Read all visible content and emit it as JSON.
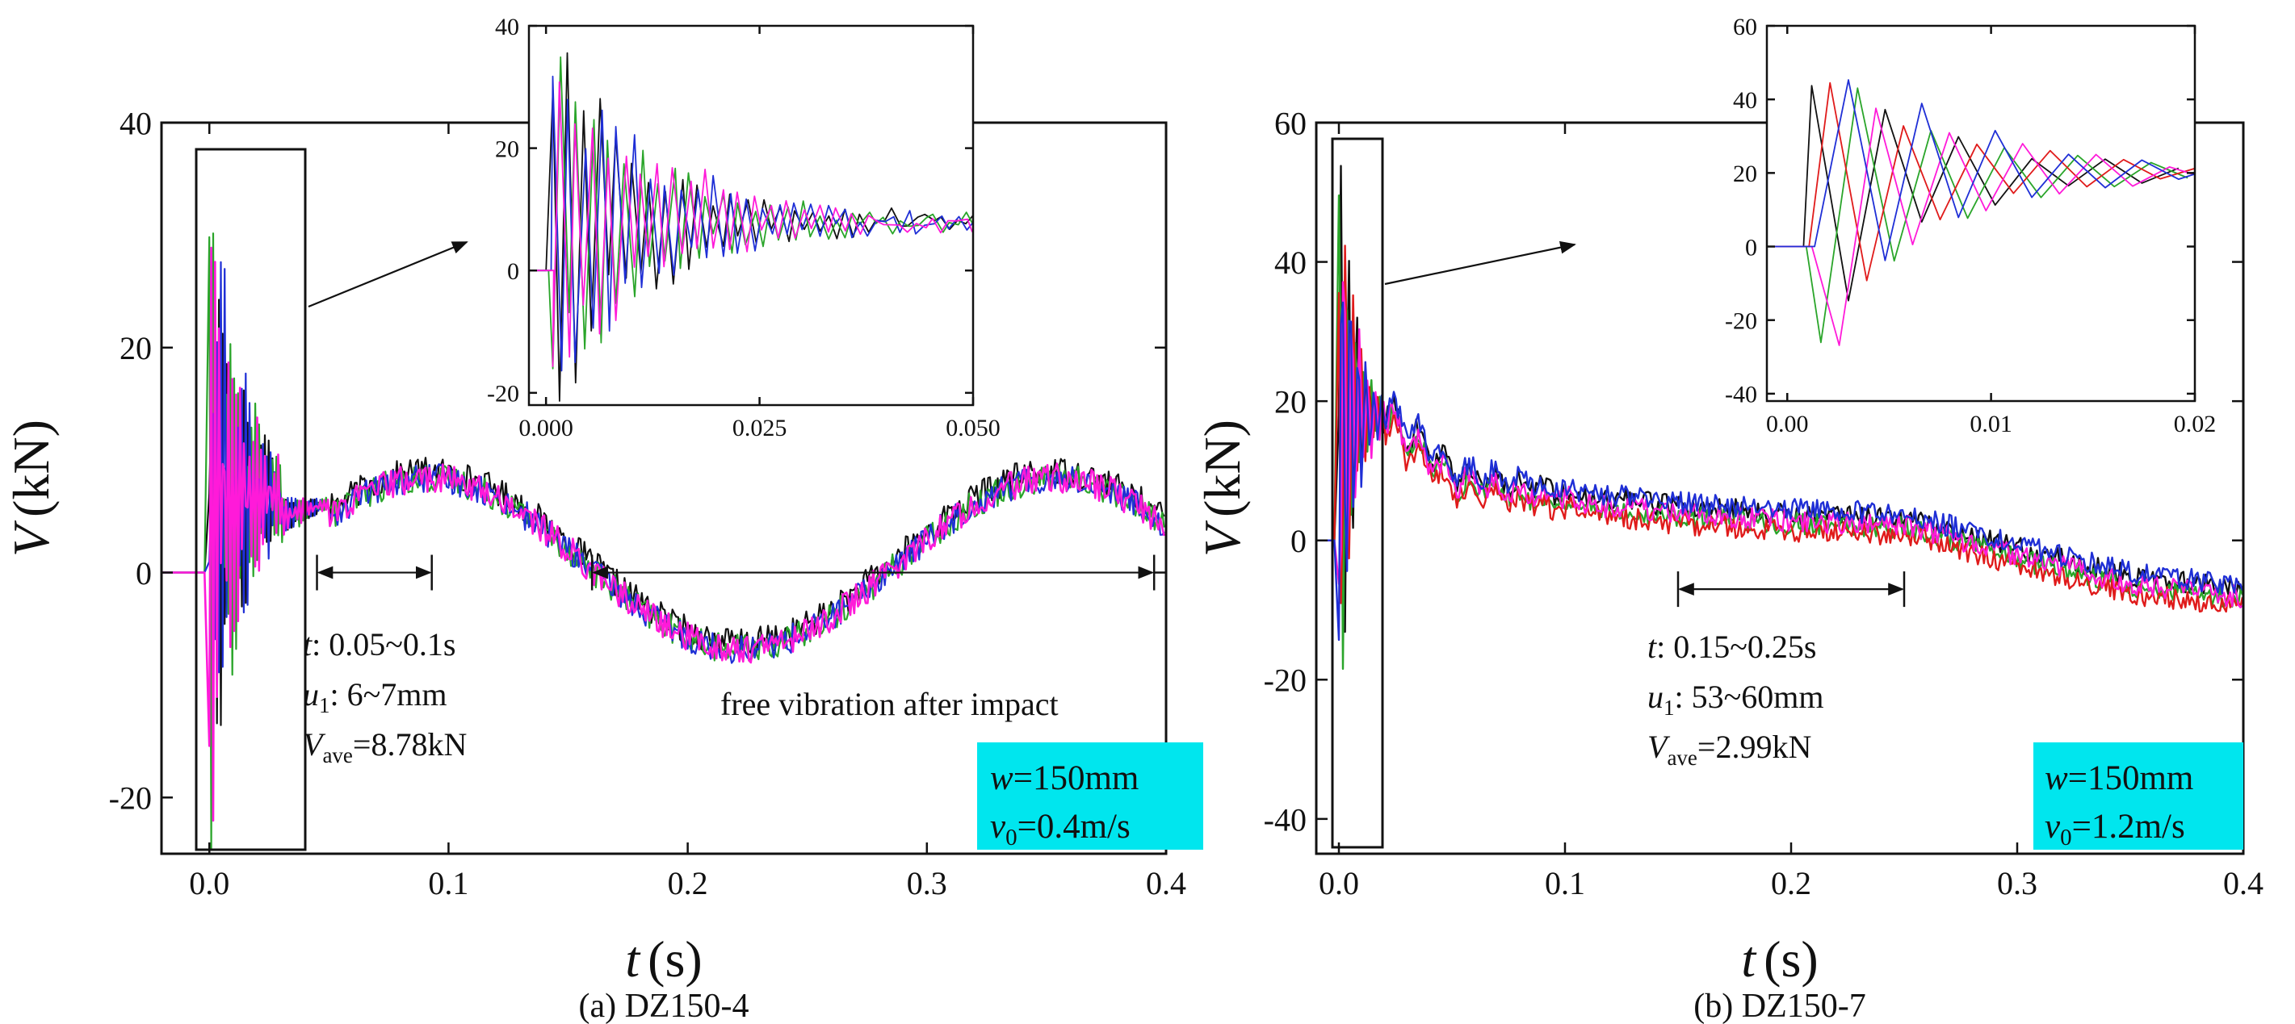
{
  "colors": {
    "black": "#111111",
    "red": "#e01b1b",
    "green": "#2aa52a",
    "blue": "#1f2fd6",
    "magenta": "#ff1ad9",
    "info_box": "#00e6ee"
  },
  "chart_data": [
    {
      "type": "line",
      "caption": "(a) DZ150-4",
      "xlabel_var": "t",
      "xlabel_unit": "(s)",
      "ylabel_var": "V",
      "ylabel_unit": "(kN)",
      "xlim": [
        -0.02,
        0.4
      ],
      "ylim": [
        -25,
        40
      ],
      "xticks": [
        0.0,
        0.1,
        0.2,
        0.3,
        0.4
      ],
      "xtick_labels": [
        "0.0",
        "0.1",
        "0.2",
        "0.3",
        "0.4"
      ],
      "yticks": [
        -20,
        0,
        20,
        40
      ],
      "ytick_labels": [
        "-20",
        "0",
        "20",
        "40"
      ],
      "colors": [
        "#111111",
        "#2aa52a",
        "#1f2fd6",
        "#ff1ad9"
      ],
      "signal": {
        "impact_end": 0.05,
        "impact_peak": 34,
        "sine": {
          "mean": 0.8,
          "amp": 7.6,
          "center": 0.0915,
          "period": 0.262,
          "pre_offset": 7.6
        },
        "jitter": 1.3
      },
      "bracket1": {
        "x0": 0.045,
        "x1": 0.093,
        "y": 0
      },
      "bracket2": {
        "x0": 0.16,
        "x1": 0.395,
        "y": 0
      },
      "annotation": {
        "t_label": "t",
        "t_value": ": 0.05~0.1s",
        "u_label": "u",
        "u_sub": "1",
        "u_value": ": 6~7mm",
        "v_label": "V",
        "v_sub": "ave",
        "v_value": "=8.78kN",
        "free_vibration": "free vibration after impact"
      },
      "info_box": {
        "w_label": "w",
        "w_value": "=150mm",
        "v_label": "v",
        "v_sub": "0",
        "v_value": "=0.4m/s"
      },
      "inset": {
        "xlim": [
          -0.002,
          0.05
        ],
        "ylim": [
          -22,
          40
        ],
        "xticks": [
          0.0,
          0.025,
          0.05
        ],
        "xtick_labels": [
          "0.000",
          "0.025",
          "0.050"
        ],
        "yticks": [
          -20,
          0,
          20,
          40
        ],
        "ytick_labels": [
          "-20",
          "0",
          "20",
          "40"
        ],
        "mean": 8,
        "peak": 34,
        "decay": 0.012,
        "period": 0.0019
      }
    },
    {
      "type": "line",
      "caption": "(b) DZ150-7",
      "xlabel_var": "t",
      "xlabel_unit": "(s)",
      "ylabel_var": "V",
      "ylabel_unit": "(kN)",
      "xlim": [
        -0.01,
        0.4
      ],
      "ylim": [
        -45,
        60
      ],
      "xticks": [
        0.0,
        0.1,
        0.2,
        0.3,
        0.4
      ],
      "xtick_labels": [
        "0.0",
        "0.1",
        "0.2",
        "0.3",
        "0.4"
      ],
      "yticks": [
        -40,
        -20,
        0,
        20,
        40,
        60
      ],
      "ytick_labels": [
        "-40",
        "-20",
        "0",
        "20",
        "40",
        "60"
      ],
      "colors": [
        "#111111",
        "#2aa52a",
        "#e01b1b",
        "#ff1ad9",
        "#1f2fd6"
      ],
      "signal": {
        "impact_end": 0.02,
        "impact_peak": 50,
        "trend": [
          [
            0.02,
            18
          ],
          [
            0.05,
            9
          ],
          [
            0.1,
            6
          ],
          [
            0.15,
            4
          ],
          [
            0.2,
            3
          ],
          [
            0.25,
            2.5
          ],
          [
            0.3,
            -2
          ],
          [
            0.35,
            -6
          ],
          [
            0.4,
            -8
          ]
        ],
        "jitter": 1.6
      },
      "bracket1": {
        "x0": 0.15,
        "x1": 0.25,
        "y": -7
      },
      "annotation": {
        "t_label": "t",
        "t_value": ": 0.15~0.25s",
        "u_label": "u",
        "u_sub": "1",
        "u_value": ": 53~60mm",
        "v_label": "V",
        "v_sub": "ave",
        "v_value": "=2.99kN"
      },
      "info_box": {
        "w_label": "w",
        "w_value": "=150mm",
        "v_label": "v",
        "v_sub": "0",
        "v_value": "=1.2m/s"
      },
      "inset": {
        "xlim": [
          -0.001,
          0.02
        ],
        "ylim": [
          -42,
          60
        ],
        "xticks": [
          0.0,
          0.01,
          0.02
        ],
        "xtick_labels": [
          "0.00",
          "0.01",
          "0.02"
        ],
        "yticks": [
          -40,
          -20,
          0,
          20,
          40,
          60
        ],
        "ytick_labels": [
          "-40",
          "-20",
          "0",
          "20",
          "40",
          "60"
        ],
        "mean": 20,
        "peak": 52,
        "decay": 0.006,
        "period": 0.0036
      }
    }
  ]
}
